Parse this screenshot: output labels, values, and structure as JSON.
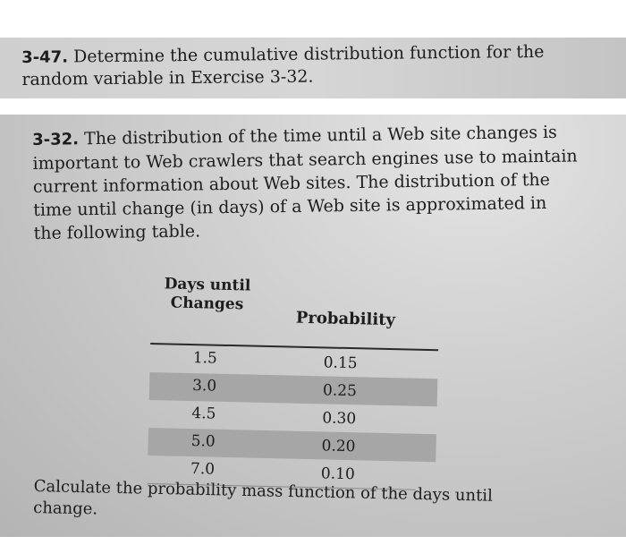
{
  "problem_347": {
    "number": "3-47.",
    "lines": [
      "Determine the cumulative distribution function for the",
      "random variable in Exercise 3-32."
    ]
  },
  "problem_332": {
    "number": "3-32.",
    "lines": [
      "The distribution of the time until a Web site changes is",
      "important to Web crawlers that search engines use to maintain",
      "current information about Web sites. The distribution of the",
      "time until change (in days) of a Web site is approximated in",
      "the following table."
    ]
  },
  "table": {
    "header_col1_line1": "Days until",
    "header_col1_line2": "Changes",
    "header_col2": "Probability",
    "rows": [
      {
        "days": "1.5",
        "prob": "0.15"
      },
      {
        "days": "3.0",
        "prob": "0.25"
      },
      {
        "days": "4.5",
        "prob": "0.30"
      },
      {
        "days": "5.0",
        "prob": "0.20"
      },
      {
        "days": "7.0",
        "prob": "0.10"
      }
    ]
  },
  "question": {
    "lines": [
      "Calculate the probability mass function of the days until",
      "change."
    ]
  }
}
